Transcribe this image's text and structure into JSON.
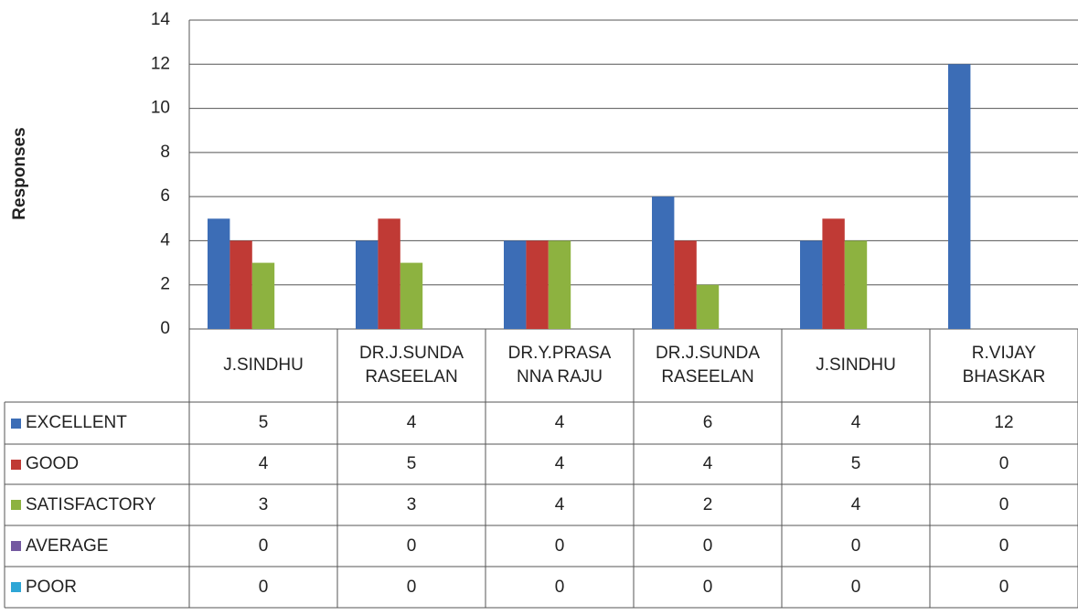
{
  "chart_data": {
    "type": "bar",
    "y_axis_label": "Responses",
    "categories": [
      "J.SINDHU",
      "DR.J.SUNDA RASEELAN",
      "DR.Y.PRASA NNA RAJU",
      "DR.J.SUNDA RASEELAN",
      "J.SINDHU",
      "R.VIJAY BHASKAR"
    ],
    "series": [
      {
        "name": "EXCELLENT",
        "color": "#3c6db6",
        "values": [
          5,
          4,
          4,
          6,
          4,
          12
        ]
      },
      {
        "name": "GOOD",
        "color": "#c03a35",
        "values": [
          4,
          5,
          4,
          4,
          5,
          0
        ]
      },
      {
        "name": "SATISFACTORY",
        "color": "#8db240",
        "values": [
          3,
          3,
          4,
          2,
          4,
          0
        ]
      },
      {
        "name": "AVERAGE",
        "color": "#7459a0",
        "values": [
          0,
          0,
          0,
          0,
          0,
          0
        ]
      },
      {
        "name": "POOR",
        "color": "#2ea6d6",
        "values": [
          0,
          0,
          0,
          0,
          0,
          0
        ]
      }
    ],
    "ylim": [
      0,
      14
    ],
    "yticks": [
      0,
      2,
      4,
      6,
      8,
      10,
      12,
      14
    ],
    "grid": true
  }
}
